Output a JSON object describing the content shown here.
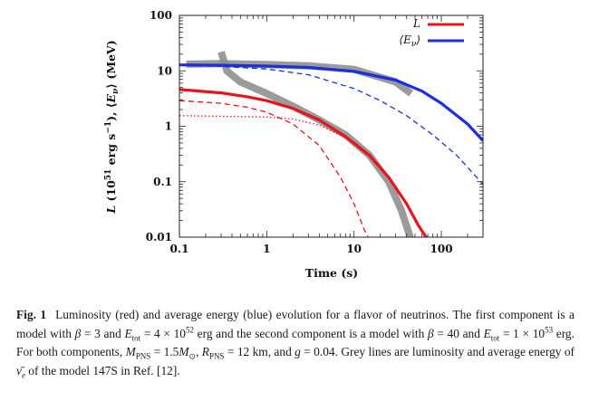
{
  "chart_data": {
    "type": "line",
    "xlabel": "Time (s)",
    "ylabel": "L (10^51 erg s^-1), ⟨E_ν⟩ (MeV)",
    "x_scale": "log",
    "y_scale": "log",
    "xlim": [
      0.1,
      300
    ],
    "ylim": [
      0.01,
      100
    ],
    "x_ticks": [
      "0.1",
      "1",
      "10",
      "100"
    ],
    "y_ticks": [
      "0.01",
      "0.1",
      "1",
      "10",
      "100"
    ],
    "grid": false,
    "legend_position": "top-right",
    "legend": [
      "L",
      "⟨E_ν⟩"
    ],
    "series": [
      {
        "name": "L",
        "style": "red solid",
        "x": [
          0.1,
          0.3,
          0.6,
          1,
          2,
          4,
          8,
          15,
          25,
          40,
          55,
          70
        ],
        "y": [
          4.6,
          4.0,
          3.4,
          2.9,
          2.1,
          1.3,
          0.65,
          0.3,
          0.12,
          0.04,
          0.016,
          0.009
        ]
      },
      {
        "name": "",
        "style": "red dashed",
        "x": [
          0.1,
          0.3,
          0.6,
          1,
          2,
          4,
          7,
          10,
          13,
          15
        ],
        "y": [
          2.9,
          2.6,
          2.2,
          1.8,
          1.1,
          0.45,
          0.12,
          0.04,
          0.014,
          0.009
        ]
      },
      {
        "name": "",
        "style": "red dotted",
        "x": [
          0.1,
          0.3,
          1,
          2,
          4,
          8,
          15,
          30
        ],
        "y": [
          1.55,
          1.52,
          1.47,
          1.35,
          1.05,
          0.62,
          0.28,
          0.08
        ]
      },
      {
        "name": "⟨E_ν⟩",
        "style": "blue solid",
        "x": [
          0.1,
          0.3,
          1,
          3,
          10,
          30,
          60,
          100,
          200,
          300
        ],
        "y": [
          12.8,
          12.6,
          12.2,
          11.5,
          9.8,
          6.8,
          4.3,
          2.6,
          1.1,
          0.55
        ]
      },
      {
        "name": "",
        "style": "blue dashed",
        "x": [
          0.1,
          0.3,
          1,
          3,
          10,
          20,
          40,
          80,
          150,
          300
        ],
        "y": [
          12.5,
          12.0,
          10.8,
          8.5,
          4.8,
          2.9,
          1.55,
          0.7,
          0.3,
          0.09
        ]
      },
      {
        "name": "",
        "style": "grey thick (model 147S)",
        "x": [
          0.3,
          0.35,
          0.5,
          1,
          2,
          4,
          8,
          15,
          25,
          35,
          45
        ],
        "y": [
          22,
          10,
          6.3,
          3.9,
          2.3,
          1.3,
          0.7,
          0.3,
          0.1,
          0.03,
          0.009
        ]
      },
      {
        "name": "",
        "style": "grey thick (model 147S)",
        "x": [
          0.12,
          0.3,
          1,
          3,
          10,
          30,
          45
        ],
        "y": [
          13.2,
          13.5,
          13.0,
          12.3,
          10.6,
          6.3,
          3.9
        ]
      }
    ]
  },
  "caption": {
    "label": "Fig. 1",
    "text": "Luminosity (red) and average energy (blue) evolution for a flavor of neutrinos. The first component is a model with β = 3 and E_tot = 4 × 10^52 erg and the second component is a model with β = 40 and E_tot = 1 × 10^53 erg. For both components, M_PNS = 1.5M_⊙, R_PNS = 12 km, and g = 0.04. Grey lines are luminosity and average energy of ν̄_e of the model 147S in Ref. [12]."
  }
}
